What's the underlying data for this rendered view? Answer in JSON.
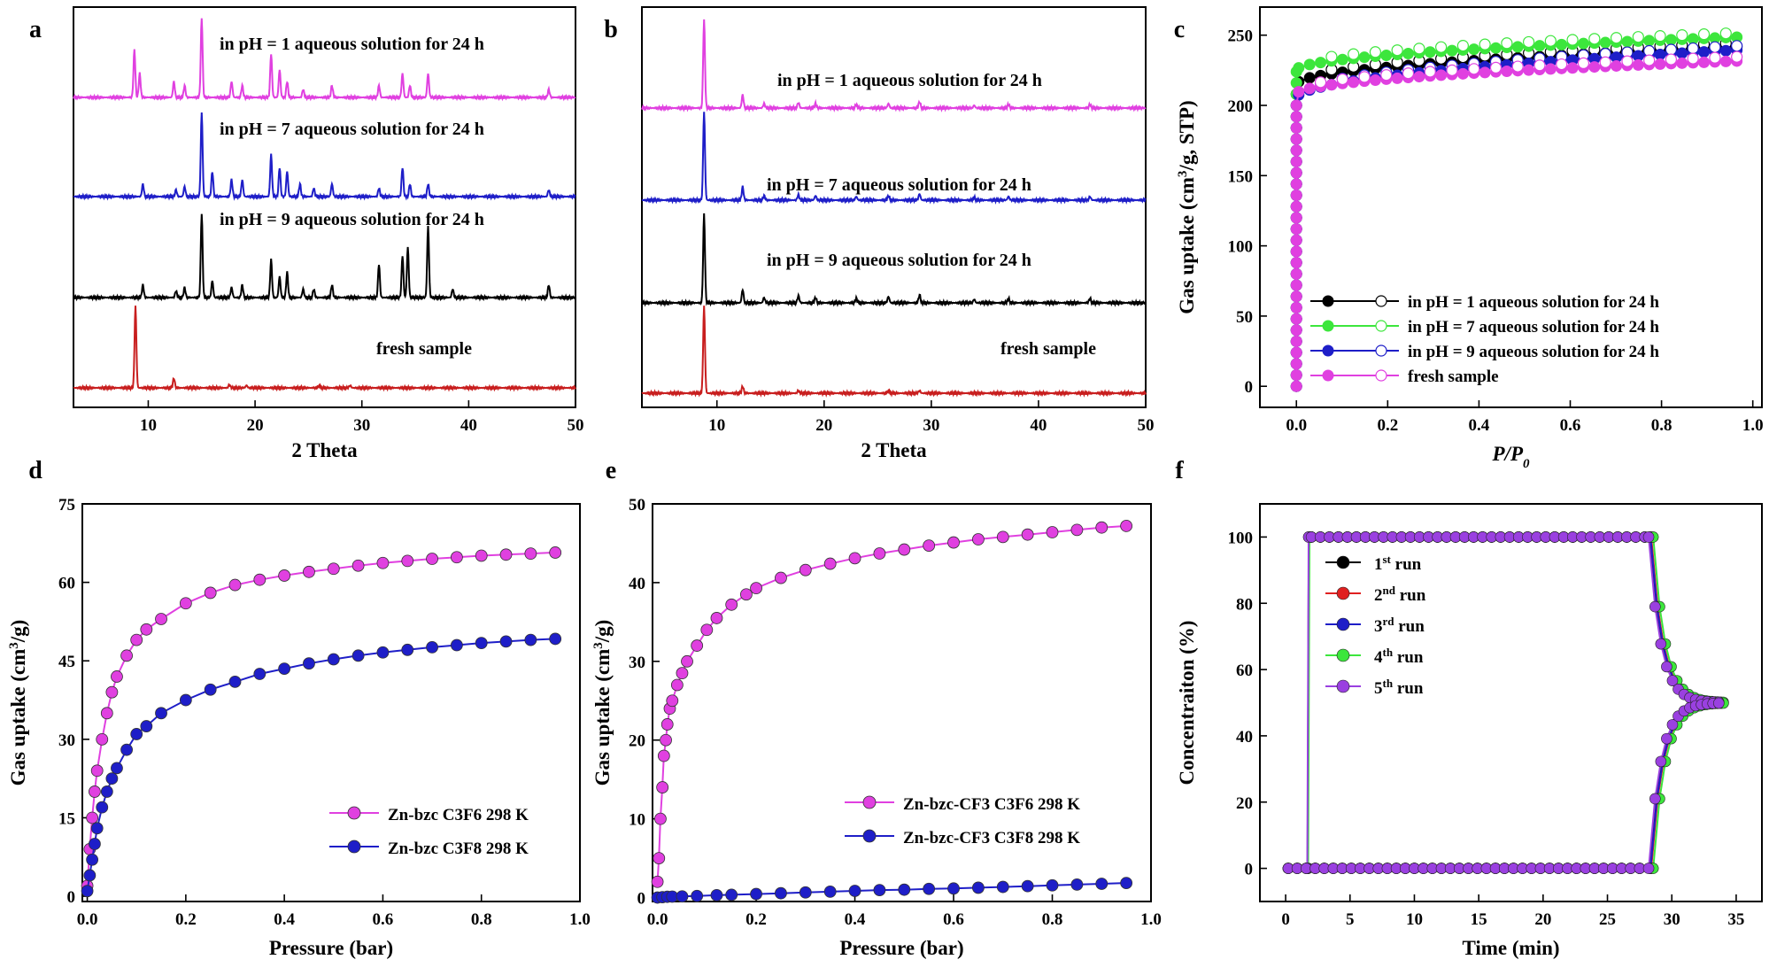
{
  "chart_data": [
    {
      "panel": "a",
      "type": "line",
      "xlabel": "2 Theta",
      "ylabel": "",
      "xlim": [
        3,
        50
      ],
      "xticks": [
        10,
        20,
        30,
        40,
        50
      ],
      "series": [
        {
          "name": "in pH = 1 aqueous solution for 24 h",
          "color": "#e040e0",
          "offset": 3,
          "peaks": [
            [
              8.7,
              0.6
            ],
            [
              9.2,
              0.3
            ],
            [
              12.4,
              0.2
            ],
            [
              13.4,
              0.15
            ],
            [
              15.0,
              1.0
            ],
            [
              17.8,
              0.2
            ],
            [
              18.8,
              0.15
            ],
            [
              21.5,
              0.55
            ],
            [
              22.3,
              0.35
            ],
            [
              23.0,
              0.2
            ],
            [
              24.5,
              0.1
            ],
            [
              27.2,
              0.15
            ],
            [
              31.6,
              0.15
            ],
            [
              33.8,
              0.3
            ],
            [
              34.5,
              0.15
            ],
            [
              36.2,
              0.3
            ],
            [
              47.5,
              0.1
            ]
          ]
        },
        {
          "name": "in pH = 7 aqueous solution for 24 h",
          "color": "#1e1ec8",
          "offset": 2,
          "peaks": [
            [
              9.5,
              0.15
            ],
            [
              12.6,
              0.08
            ],
            [
              13.4,
              0.12
            ],
            [
              15.0,
              1.0
            ],
            [
              16.0,
              0.3
            ],
            [
              17.8,
              0.2
            ],
            [
              18.8,
              0.2
            ],
            [
              21.5,
              0.5
            ],
            [
              22.3,
              0.35
            ],
            [
              23.0,
              0.3
            ],
            [
              24.2,
              0.15
            ],
            [
              25.5,
              0.1
            ],
            [
              27.2,
              0.15
            ],
            [
              31.6,
              0.1
            ],
            [
              33.8,
              0.35
            ],
            [
              34.5,
              0.15
            ],
            [
              36.2,
              0.15
            ],
            [
              47.5,
              0.08
            ]
          ]
        },
        {
          "name": "in pH = 9 aqueous solution for 24 h",
          "color": "#000000",
          "offset": 1,
          "peaks": [
            [
              9.5,
              0.15
            ],
            [
              12.6,
              0.08
            ],
            [
              13.4,
              0.12
            ],
            [
              15.0,
              1.0
            ],
            [
              16.0,
              0.2
            ],
            [
              17.8,
              0.12
            ],
            [
              18.8,
              0.15
            ],
            [
              21.5,
              0.45
            ],
            [
              22.3,
              0.25
            ],
            [
              23.0,
              0.3
            ],
            [
              24.5,
              0.1
            ],
            [
              25.5,
              0.1
            ],
            [
              27.2,
              0.15
            ],
            [
              31.6,
              0.4
            ],
            [
              33.8,
              0.5
            ],
            [
              34.3,
              0.6
            ],
            [
              36.2,
              0.85
            ],
            [
              38.5,
              0.1
            ],
            [
              47.5,
              0.15
            ]
          ]
        },
        {
          "name": "fresh sample",
          "color": "#c81e1e",
          "offset": 0,
          "peaks": [
            [
              8.8,
              1.0
            ],
            [
              12.4,
              0.12
            ],
            [
              17.6,
              0.04
            ],
            [
              19.2,
              0.03
            ],
            [
              26.0,
              0.03
            ],
            [
              28.9,
              0.03
            ]
          ]
        }
      ]
    },
    {
      "panel": "b",
      "type": "line",
      "xlabel": "2 Theta",
      "ylabel": "",
      "xlim": [
        3,
        50
      ],
      "xticks": [
        10,
        20,
        30,
        40,
        50
      ],
      "series": [
        {
          "name": "in pH = 1 aqueous solution for 24 h",
          "color": "#e040e0",
          "offset": 3,
          "peaks": [
            [
              8.8,
              1.0
            ],
            [
              12.4,
              0.15
            ],
            [
              14.4,
              0.05
            ],
            [
              17.6,
              0.06
            ],
            [
              19.2,
              0.05
            ],
            [
              23.0,
              0.04
            ],
            [
              26.0,
              0.05
            ],
            [
              28.9,
              0.07
            ],
            [
              34.0,
              0.03
            ],
            [
              37.2,
              0.04
            ],
            [
              44.8,
              0.04
            ]
          ]
        },
        {
          "name": "in pH = 7  aqueous solution for 24 h",
          "color": "#1e1ec8",
          "offset": 2,
          "peaks": [
            [
              8.8,
              1.0
            ],
            [
              12.4,
              0.15
            ],
            [
              14.4,
              0.05
            ],
            [
              17.6,
              0.06
            ],
            [
              19.2,
              0.05
            ],
            [
              23.0,
              0.04
            ],
            [
              26.0,
              0.05
            ],
            [
              28.9,
              0.07
            ],
            [
              34.0,
              0.03
            ],
            [
              37.2,
              0.04
            ],
            [
              44.8,
              0.04
            ]
          ]
        },
        {
          "name": "in pH = 9  aqueous solution for 24 h",
          "color": "#000000",
          "offset": 1,
          "peaks": [
            [
              8.8,
              1.0
            ],
            [
              12.4,
              0.15
            ],
            [
              14.4,
              0.06
            ],
            [
              17.6,
              0.08
            ],
            [
              19.2,
              0.06
            ],
            [
              23.0,
              0.05
            ],
            [
              26.0,
              0.07
            ],
            [
              28.9,
              0.09
            ],
            [
              34.0,
              0.04
            ],
            [
              37.2,
              0.05
            ],
            [
              44.8,
              0.05
            ]
          ]
        },
        {
          "name": "fresh sample",
          "color": "#c81e1e",
          "offset": 0,
          "peaks": [
            [
              8.8,
              1.0
            ],
            [
              12.4,
              0.08
            ],
            [
              17.6,
              0.03
            ],
            [
              26.0,
              0.03
            ],
            [
              28.9,
              0.03
            ]
          ]
        }
      ]
    },
    {
      "panel": "c",
      "type": "line",
      "xlabel": "P/P0",
      "ylabel": "Gas uptake (cm3/g, STP)",
      "xlim": [
        -0.08,
        1.02
      ],
      "ylim": [
        -15,
        270
      ],
      "xticks": [
        0.0,
        0.2,
        0.4,
        0.6,
        0.8,
        1.0
      ],
      "yticks": [
        0,
        50,
        100,
        150,
        200,
        250
      ],
      "legend": "bottom-center",
      "series": [
        {
          "name": "in pH = 1 aqueous solution for 24 h",
          "color": "#000000",
          "fill": "#000000",
          "plateau": 215,
          "end": 242
        },
        {
          "name": "in pH = 7 aqueous solution for 24 h",
          "color": "#3ce63c",
          "fill": "#3ce63c",
          "plateau": 225,
          "end": 249
        },
        {
          "name": "in pH = 9 aqueous solution for 24 h",
          "color": "#1e1ec8",
          "fill": "#1e1ec8",
          "plateau": 205,
          "end": 240
        },
        {
          "name": "fresh sample",
          "color": "#e040e0",
          "fill": "#e040e0",
          "plateau": 208,
          "end": 232
        }
      ]
    },
    {
      "panel": "d",
      "type": "line",
      "xlabel": "Pressure (bar)",
      "ylabel": "Gas uptake (cm3/g)",
      "xlim": [
        -0.01,
        1.0
      ],
      "ylim": [
        -1,
        75
      ],
      "xticks": [
        0.0,
        0.2,
        0.4,
        0.6,
        0.8,
        1.0
      ],
      "yticks": [
        0,
        15,
        30,
        45,
        60,
        75
      ],
      "legend": "bottom-right",
      "series": [
        {
          "name": "Zn-bzc C3F6 298 K",
          "color": "#e040e0",
          "x": [
            0.0,
            0.005,
            0.01,
            0.015,
            0.02,
            0.03,
            0.04,
            0.05,
            0.06,
            0.08,
            0.1,
            0.12,
            0.15,
            0.2,
            0.25,
            0.3,
            0.35,
            0.4,
            0.45,
            0.5,
            0.55,
            0.6,
            0.65,
            0.7,
            0.75,
            0.8,
            0.85,
            0.9,
            0.95
          ],
          "y": [
            2,
            9,
            15,
            20,
            24,
            30,
            35,
            39,
            42,
            46,
            49,
            51,
            53,
            56,
            58,
            59.5,
            60.5,
            61.3,
            62,
            62.6,
            63.2,
            63.7,
            64.1,
            64.5,
            64.8,
            65.1,
            65.3,
            65.5,
            65.7
          ]
        },
        {
          "name": "Zn-bzc C3F8 298 K",
          "color": "#1e1ec8",
          "x": [
            0.0,
            0.005,
            0.01,
            0.015,
            0.02,
            0.03,
            0.04,
            0.05,
            0.06,
            0.08,
            0.1,
            0.12,
            0.15,
            0.2,
            0.25,
            0.3,
            0.35,
            0.4,
            0.45,
            0.5,
            0.55,
            0.6,
            0.65,
            0.7,
            0.75,
            0.8,
            0.85,
            0.9,
            0.95
          ],
          "y": [
            1,
            4,
            7,
            10,
            13,
            17,
            20,
            22.5,
            24.5,
            28,
            31,
            32.5,
            35,
            37.5,
            39.5,
            41,
            42.5,
            43.5,
            44.5,
            45.3,
            46,
            46.6,
            47.1,
            47.6,
            48,
            48.4,
            48.7,
            49,
            49.2
          ]
        }
      ]
    },
    {
      "panel": "e",
      "type": "line",
      "xlabel": "Pressure (bar)",
      "ylabel": "Gas uptake (cm3/g)",
      "xlim": [
        -0.01,
        1.0
      ],
      "ylim": [
        -0.5,
        50
      ],
      "xticks": [
        0.0,
        0.2,
        0.4,
        0.6,
        0.8,
        1.0
      ],
      "yticks": [
        0,
        10,
        20,
        30,
        40,
        50
      ],
      "legend": "bottom-right",
      "series": [
        {
          "name": "Zn-bzc-CF3 C3F6 298 K",
          "color": "#e040e0",
          "x": [
            0.0,
            0.003,
            0.006,
            0.01,
            0.013,
            0.017,
            0.02,
            0.025,
            0.03,
            0.04,
            0.05,
            0.06,
            0.08,
            0.1,
            0.12,
            0.15,
            0.18,
            0.2,
            0.25,
            0.3,
            0.35,
            0.4,
            0.45,
            0.5,
            0.55,
            0.6,
            0.65,
            0.7,
            0.75,
            0.8,
            0.85,
            0.9,
            0.95
          ],
          "y": [
            2,
            5,
            10,
            14,
            18,
            20,
            22,
            24,
            25,
            27,
            28.5,
            30,
            32,
            34,
            35.5,
            37.2,
            38.5,
            39.3,
            40.6,
            41.6,
            42.4,
            43.1,
            43.7,
            44.2,
            44.7,
            45.1,
            45.5,
            45.8,
            46.1,
            46.4,
            46.7,
            47,
            47.2
          ]
        },
        {
          "name": "Zn-bzc-CF3 C3F8 298 K",
          "color": "#1e1ec8",
          "x": [
            0.0,
            0.01,
            0.02,
            0.03,
            0.05,
            0.08,
            0.12,
            0.15,
            0.2,
            0.25,
            0.3,
            0.35,
            0.4,
            0.45,
            0.5,
            0.55,
            0.6,
            0.65,
            0.7,
            0.75,
            0.8,
            0.85,
            0.9,
            0.95
          ],
          "y": [
            0,
            0.05,
            0.1,
            0.12,
            0.15,
            0.2,
            0.3,
            0.35,
            0.45,
            0.55,
            0.65,
            0.75,
            0.85,
            0.95,
            1.0,
            1.1,
            1.15,
            1.25,
            1.35,
            1.45,
            1.55,
            1.65,
            1.75,
            1.85
          ]
        }
      ]
    },
    {
      "panel": "f",
      "type": "line",
      "xlabel": "Time (min)",
      "ylabel": "Concentraiton (%)",
      "xlim": [
        -2,
        37
      ],
      "ylim": [
        -10,
        110
      ],
      "xticks": [
        0,
        5,
        10,
        15,
        20,
        25,
        30,
        35
      ],
      "yticks": [
        0,
        20,
        40,
        60,
        80,
        100
      ],
      "legend": "top-left",
      "series": [
        {
          "name": "1st  run",
          "sup": "st",
          "base": "1",
          "tail": "  run",
          "color": "#000000",
          "shift": 0.0
        },
        {
          "name": "2nd run",
          "sup": "nd",
          "base": "2",
          "tail": " run",
          "color": "#e02020",
          "shift": 0.1
        },
        {
          "name": "3rd run",
          "sup": "rd",
          "base": "3",
          "tail": " run",
          "color": "#1e1ec8",
          "shift": 0.05
        },
        {
          "name": "4th run",
          "sup": "th",
          "base": "4",
          "tail": " run",
          "color": "#3ce63c",
          "shift": 0.25
        },
        {
          "name": "5th run",
          "sup": "th",
          "base": "5",
          "tail": " run",
          "color": "#9a40e0",
          "shift": -0.1
        }
      ]
    }
  ]
}
